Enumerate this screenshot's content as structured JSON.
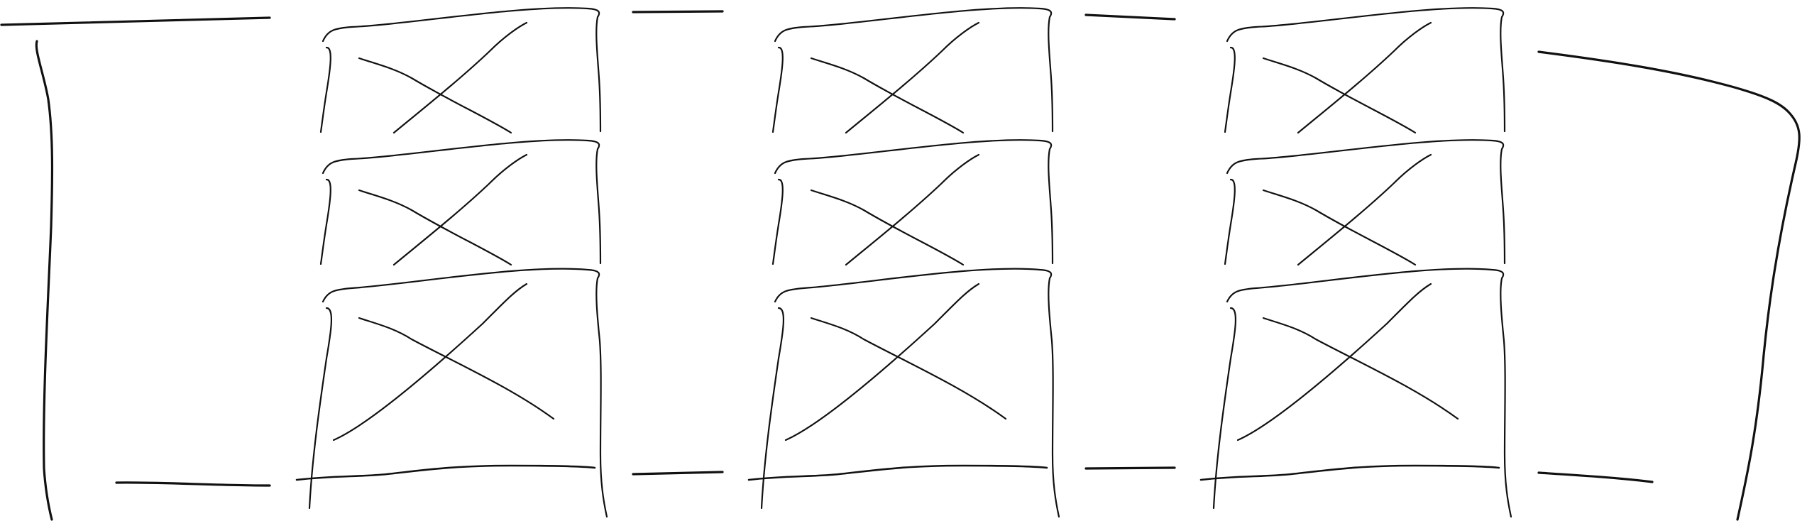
{
  "sketch": {
    "stroke_color": "#111111",
    "background": "#ffffff",
    "columns": 3,
    "rows_per_column": 3,
    "cell_marks": "crossed-out",
    "bracket_style": "square-left-curved-right",
    "top_dashes_count": 4,
    "bottom_dashes_count": 4
  }
}
